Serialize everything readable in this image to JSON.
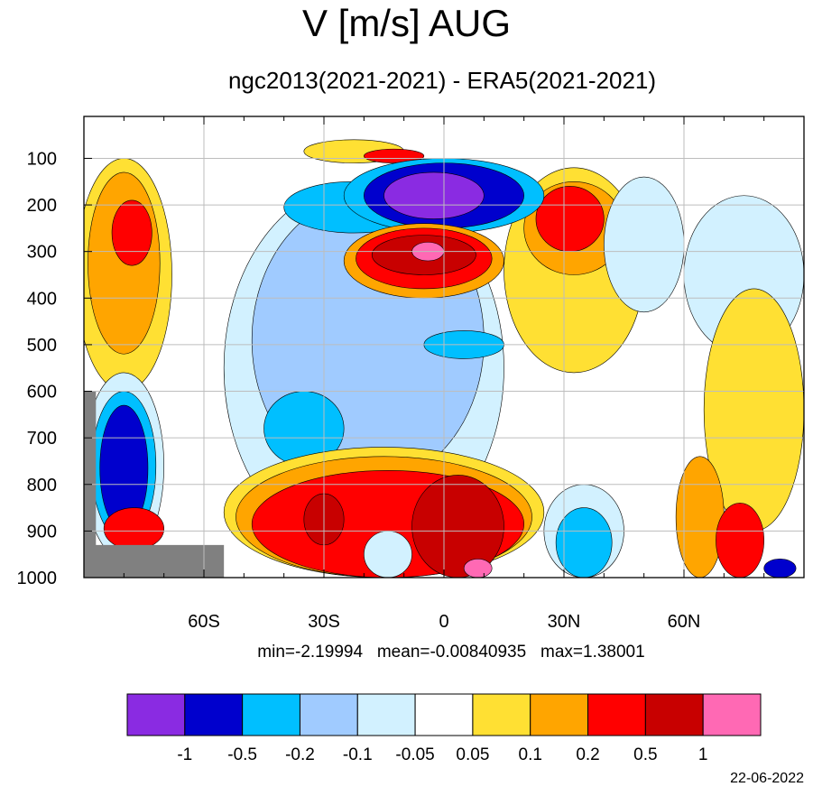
{
  "page": {
    "title": "V [m/s] AUG",
    "subtitle": "ngc2013(2021-2021) - ERA5(2021-2021)",
    "stats_line": "min=-2.19994   mean=-0.00840935   max=1.38001",
    "date": "22-06-2022"
  },
  "chart_data": {
    "type": "heatmap",
    "title": "V [m/s] AUG",
    "subtitle": "ngc2013(2021-2021) - ERA5(2021-2021)",
    "variable": "V [m/s]",
    "x_axis": {
      "tick_values": [
        -60,
        -30,
        0,
        30,
        60
      ],
      "tick_labels": [
        "60S",
        "30S",
        "0",
        "30N",
        "60N"
      ],
      "range": [
        -90,
        90
      ]
    },
    "y_axis": {
      "tick_values": [
        100,
        200,
        300,
        400,
        500,
        600,
        700,
        800,
        900,
        1000
      ],
      "tick_labels": [
        "100",
        "200",
        "300",
        "400",
        "500",
        "600",
        "700",
        "800",
        "900",
        "1000"
      ],
      "range": [
        10,
        1000
      ],
      "inverted": true
    },
    "grid": true,
    "stats": {
      "min": -2.19994,
      "mean": -0.00840935,
      "max": 1.38001
    },
    "colorbar": {
      "levels": [
        "-1",
        "-0.5",
        "-0.2",
        "-0.1",
        "-0.05",
        "0.05",
        "0.1",
        "0.2",
        "0.5",
        "1"
      ],
      "colors": [
        "#8a2be2",
        "#0000cd",
        "#00bfff",
        "#a0cbff",
        "#d2f1ff",
        "#ffffff",
        "#ffe033",
        "#ffa500",
        "#ff0000",
        "#c80000",
        "#ff69b4"
      ],
      "placement": "bottom"
    },
    "missing_color": "#808080",
    "features": [
      {
        "level": 0.1,
        "lat": [
          -90,
          -70
        ],
        "p": [
          120,
          520
        ]
      },
      {
        "level": 0.2,
        "lat": [
          -80,
          -73
        ],
        "p": [
          180,
          330
        ]
      },
      {
        "level": -1,
        "lat": [
          -15,
          10
        ],
        "p": [
          130,
          230
        ]
      },
      {
        "level": -0.5,
        "lat": [
          -20,
          20
        ],
        "p": [
          110,
          250
        ]
      },
      {
        "level": 0.5,
        "lat": [
          -22,
          12
        ],
        "p": [
          250,
          380
        ]
      },
      {
        "level": 1,
        "lat": [
          -8,
          0
        ],
        "p": [
          280,
          320
        ]
      },
      {
        "level": 0.2,
        "lat": [
          22,
          40
        ],
        "p": [
          150,
          320
        ]
      },
      {
        "level": 0.5,
        "lat": [
          -35,
          -25
        ],
        "p": [
          820,
          930
        ]
      },
      {
        "level": 0.5,
        "lat": [
          -8,
          15
        ],
        "p": [
          780,
          1000
        ]
      },
      {
        "level": 1,
        "lat": [
          5,
          12
        ],
        "p": [
          950,
          1000
        ]
      },
      {
        "level": -0.5,
        "lat": [
          -84,
          -74
        ],
        "p": [
          630,
          900
        ]
      },
      {
        "level": -0.2,
        "lat": [
          28,
          42
        ],
        "p": [
          850,
          1000
        ]
      }
    ]
  }
}
